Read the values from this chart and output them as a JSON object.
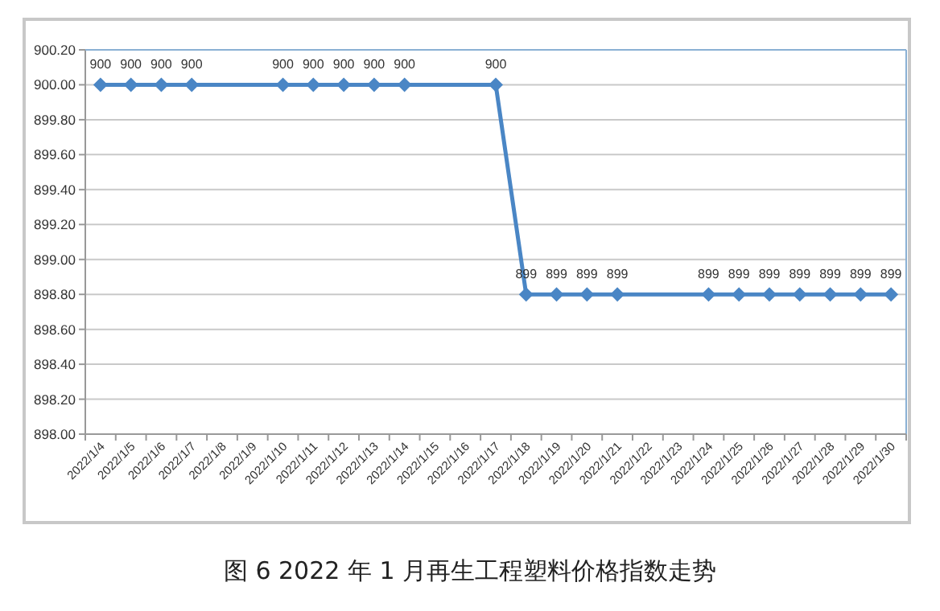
{
  "chart_data": {
    "type": "line",
    "title": "图 6  2022 年 1 月再生工程塑料价格指数走势",
    "categories": [
      "2022/1/4",
      "2022/1/5",
      "2022/1/6",
      "2022/1/7",
      "2022/1/8",
      "2022/1/9",
      "2022/1/10",
      "2022/1/11",
      "2022/1/12",
      "2022/1/13",
      "2022/1/14",
      "2022/1/15",
      "2022/1/16",
      "2022/1/17",
      "2022/1/18",
      "2022/1/19",
      "2022/1/20",
      "2022/1/21",
      "2022/1/22",
      "2022/1/23",
      "2022/1/24",
      "2022/1/25",
      "2022/1/26",
      "2022/1/27",
      "2022/1/28",
      "2022/1/29",
      "2022/1/30"
    ],
    "series": [
      {
        "color": "#4a86c5",
        "values": [
          900,
          900,
          900,
          900,
          null,
          null,
          900,
          900,
          900,
          900,
          900,
          null,
          null,
          900,
          898.8,
          898.8,
          898.8,
          898.8,
          null,
          null,
          898.8,
          898.8,
          898.8,
          898.8,
          898.8,
          898.8,
          898.8
        ],
        "value_labels": [
          "900",
          "900",
          "900",
          "900",
          null,
          null,
          "900",
          "900",
          "900",
          "900",
          "900",
          null,
          null,
          "900",
          "899",
          "899",
          "899",
          "899",
          null,
          null,
          "899",
          "899",
          "899",
          "899",
          "899",
          "899",
          "899"
        ]
      }
    ],
    "ylim": [
      898,
      900.2
    ],
    "yticks": [
      {
        "value": 898,
        "label": "898.00"
      },
      {
        "value": 898.2,
        "label": "898.20"
      },
      {
        "value": 898.4,
        "label": "898.40"
      },
      {
        "value": 898.6,
        "label": "898.60"
      },
      {
        "value": 898.8,
        "label": "898.80"
      },
      {
        "value": 899,
        "label": "899.00"
      },
      {
        "value": 899.2,
        "label": "899.20"
      },
      {
        "value": 899.4,
        "label": "899.40"
      },
      {
        "value": 899.6,
        "label": "899.60"
      },
      {
        "value": 899.8,
        "label": "899.80"
      },
      {
        "value": 900,
        "label": "900.00"
      },
      {
        "value": 900.2,
        "label": "900.20"
      }
    ],
    "grid": "y",
    "marker": "diamond",
    "line_style": "solid"
  }
}
